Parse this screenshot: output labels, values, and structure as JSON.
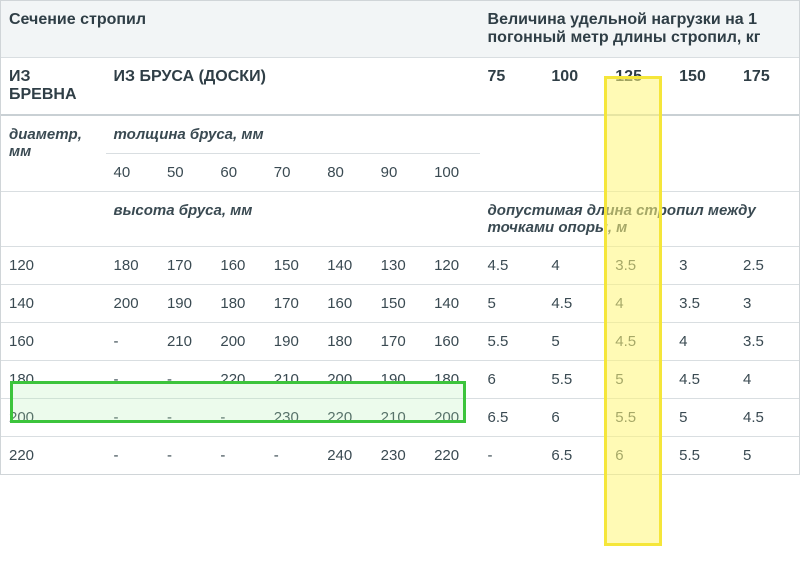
{
  "headers": {
    "section_title": "Сечение стропил",
    "load_title": "Величина удельной нагрузки на 1 погонный метр длины стропил, кг",
    "from_log": "ИЗ БРЕВНА",
    "from_beam": "ИЗ БРУСА (ДОСКИ)",
    "diam_label": "диаметр, мм",
    "thickness_label": "толщина бруса, мм",
    "height_label": "высота бруса, мм",
    "span_label": "допустимая длина стропил между точками опоры, м"
  },
  "thickness_values": [
    "40",
    "50",
    "60",
    "70",
    "80",
    "90",
    "100"
  ],
  "load_values": [
    "75",
    "100",
    "125",
    "150",
    "175"
  ],
  "rows": [
    {
      "diam": "120",
      "heights": [
        "180",
        "170",
        "160",
        "150",
        "140",
        "130",
        "120"
      ],
      "spans": [
        "4.5",
        "4",
        "3.5",
        "3",
        "2.5"
      ]
    },
    {
      "diam": "140",
      "heights": [
        "200",
        "190",
        "180",
        "170",
        "160",
        "150",
        "140"
      ],
      "spans": [
        "5",
        "4.5",
        "4",
        "3.5",
        "3"
      ]
    },
    {
      "diam": "160",
      "heights": [
        "-",
        "210",
        "200",
        "190",
        "180",
        "170",
        "160"
      ],
      "spans": [
        "5.5",
        "5",
        "4.5",
        "4",
        "3.5"
      ]
    },
    {
      "diam": "180",
      "heights": [
        "-",
        "-",
        "220",
        "210",
        "200",
        "190",
        "180"
      ],
      "spans": [
        "6",
        "5.5",
        "5",
        "4.5",
        "4"
      ]
    },
    {
      "diam": "200",
      "heights": [
        "-",
        "-",
        "-",
        "230",
        "220",
        "210",
        "200"
      ],
      "spans": [
        "6.5",
        "6",
        "5.5",
        "5",
        "4.5"
      ]
    },
    {
      "diam": "220",
      "heights": [
        "-",
        "-",
        "-",
        "-",
        "240",
        "230",
        "220"
      ],
      "spans": [
        "-",
        "6.5",
        "6",
        "5.5",
        "5"
      ]
    }
  ],
  "highlight": {
    "row_diam": "160",
    "load_col": "125",
    "row_color": "#3cc43c",
    "col_color": "#f5e63a",
    "col_fill": "#fff578",
    "row_fill": "#b4f0b4"
  },
  "colors": {
    "text": "#3a4a52",
    "header_bg": "#f2f5f6",
    "border": "#d9dee1"
  }
}
